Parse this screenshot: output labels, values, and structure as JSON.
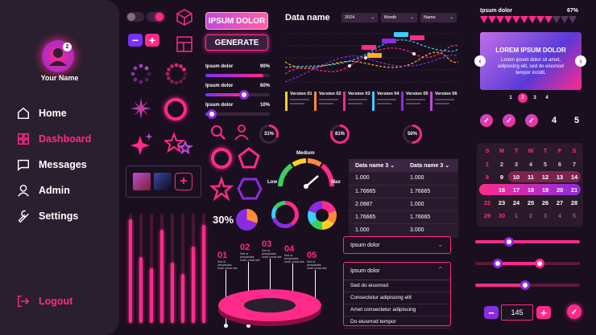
{
  "sidebar": {
    "user_name": "Your Name",
    "notification_count": "2",
    "items": [
      {
        "label": "Home"
      },
      {
        "label": "Dashboard"
      },
      {
        "label": "Messages"
      },
      {
        "label": "Admin"
      },
      {
        "label": "Settings"
      }
    ],
    "logout_label": "Logout"
  },
  "buttons": {
    "ipsum_dolor": "IPSUM DOLOR",
    "generate": "GENERATE"
  },
  "sliders": [
    {
      "label": "Ipsum dolor",
      "value": "90%",
      "fraction": 0.9
    },
    {
      "label": "Ipsum dolor",
      "value": "60%",
      "fraction": 0.6
    },
    {
      "label": "Ipsum dolor",
      "value": "10%",
      "fraction": 0.1
    }
  ],
  "chart": {
    "title": "Data name",
    "filters": [
      "2024",
      "Month",
      "Name"
    ],
    "versions": [
      "Version 01",
      "Version 02",
      "Version 03",
      "Version 04",
      "Version 05",
      "Version 06"
    ]
  },
  "donuts": [
    "31%",
    "81%",
    "50%"
  ],
  "gauge": {
    "medium": "Medium",
    "low": "Low",
    "max": "Max"
  },
  "pie_percent": "30%",
  "data_table": {
    "headers": [
      "Data name 3",
      "Data name 3"
    ],
    "rows": [
      [
        "1.000",
        "1.000"
      ],
      [
        "1.76665",
        "1.76665"
      ],
      [
        "2.0987",
        "1.000"
      ],
      [
        "1.76665",
        "1.76665"
      ],
      [
        "1.000",
        "3.000"
      ]
    ]
  },
  "steps": [
    {
      "num": "01",
      "text": "Sed ut perspiciatis unde omnis iste"
    },
    {
      "num": "02",
      "text": "Sed ut perspiciatis unde omnis iste"
    },
    {
      "num": "03",
      "text": "Sed ut perspiciatis unde omnis iste"
    },
    {
      "num": "04",
      "text": "Sed ut perspiciatis unde omnis iste"
    },
    {
      "num": "05",
      "text": "Sed ut perspiciatis unde omnis iste"
    }
  ],
  "dropdown_closed": {
    "label": "Ipsum dolor"
  },
  "dropdown_open": {
    "label": "Ipsum dolor",
    "options": [
      "Sed do eiusmod",
      "Consectetur adipiscing elit",
      "Amet consectetur adipiscing",
      "Do eiusmod tempor"
    ]
  },
  "top_progress": {
    "label": "Ipsum dolor",
    "value": "67%",
    "fraction": 0.67
  },
  "carousel": {
    "title": "LOREM IPSUM DOLOR",
    "body": "Lorem ipsum dolor sit amet, adipiscing elit, sed do eiusmod tempor incidit.",
    "pages": [
      "1",
      "2",
      "3",
      "4"
    ],
    "active_page": 1
  },
  "checks": [
    "",
    "",
    "",
    "4",
    "5"
  ],
  "calendar": {
    "weekdays": [
      "S",
      "M",
      "T",
      "W",
      "T",
      "F",
      "S"
    ],
    "rows": [
      [
        "1",
        "2",
        "3",
        "4",
        "5",
        "6",
        "7"
      ],
      [
        "8",
        "9",
        "10",
        "11",
        "12",
        "13",
        "14"
      ],
      [
        "15",
        "16",
        "17",
        "18",
        "19",
        "20",
        "21"
      ],
      [
        "22",
        "23",
        "24",
        "25",
        "26",
        "27",
        "28"
      ],
      [
        "29",
        "30",
        "1",
        "2",
        "3",
        "4",
        "5"
      ]
    ]
  },
  "stepper": {
    "value": "145",
    "minus": "−",
    "plus": "+"
  },
  "colors": {
    "accent": "#ff2a8a",
    "purple": "#8a2be2",
    "bg": "#1a0f1f"
  }
}
